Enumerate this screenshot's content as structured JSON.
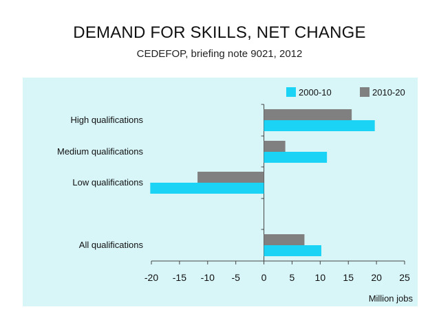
{
  "slide": {
    "title": "DEMAND FOR SKILLS, NET CHANGE",
    "subtitle": "CEDEFOP, briefing note 9021, 2012"
  },
  "chart_data": {
    "type": "bar",
    "orientation": "horizontal",
    "categories": [
      "High qualifications",
      "Medium qualifications",
      "Low qualifications",
      "All qualifications"
    ],
    "series": [
      {
        "name": "2000-10",
        "color": "#1ad3f5",
        "values": [
          19.7,
          11.2,
          -20.2,
          10.2
        ]
      },
      {
        "name": "2010-20",
        "color": "#808080",
        "values": [
          15.6,
          3.8,
          -11.8,
          7.2
        ]
      }
    ],
    "xlabel": "Million jobs",
    "xlim": [
      -20,
      25
    ],
    "xticks": [
      -20,
      -15,
      -10,
      -5,
      0,
      5,
      10,
      15,
      20,
      25
    ],
    "legend": "top-right",
    "grid": false
  }
}
